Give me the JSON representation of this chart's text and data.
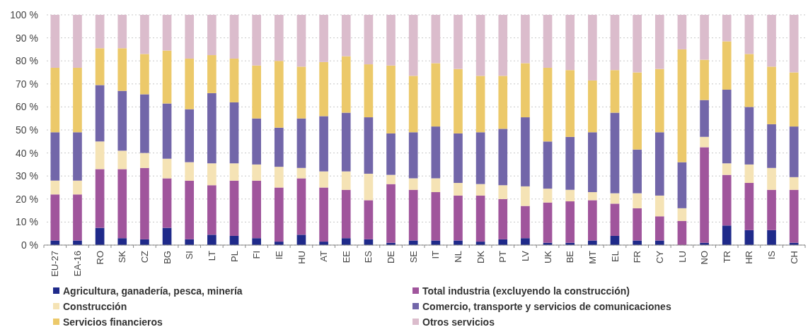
{
  "chart_data": {
    "type": "bar",
    "stacked": true,
    "categories": [
      "EU-27",
      "EA-16",
      "RO",
      "SK",
      "CZ",
      "BG",
      "SI",
      "LT",
      "PL",
      "FI",
      "IE",
      "HU",
      "AT",
      "EE",
      "ES",
      "DE",
      "SE",
      "IT",
      "NL",
      "DK",
      "PT",
      "LV",
      "UK",
      "BE",
      "MT",
      "EL",
      "FR",
      "CY",
      "LU",
      "NO",
      "TR",
      "HR",
      "IS",
      "CH"
    ],
    "series": [
      {
        "name": "Agricultura, ganadería, pesca, minería",
        "color": "#1f2a8a",
        "values": [
          2,
          2,
          7.5,
          3,
          2.5,
          7.5,
          2.5,
          4.5,
          4,
          3,
          1.5,
          4.5,
          1.5,
          3,
          2.5,
          1,
          2,
          2,
          2,
          1.5,
          2.5,
          3,
          1,
          1,
          2,
          4,
          2,
          2,
          null,
          1,
          8.5,
          6.5,
          6.5,
          1
        ]
      },
      {
        "name": "Total industria (excluyendo la construcción)",
        "color": "#a0559c",
        "values": [
          20,
          20,
          25.5,
          30,
          31,
          21.5,
          25.5,
          21.5,
          24,
          25,
          23.5,
          24.5,
          23.5,
          21,
          17,
          25.5,
          22,
          21,
          19.5,
          20,
          17.5,
          14,
          17.5,
          18,
          17.5,
          14,
          14,
          10.5,
          10.5,
          41.5,
          22,
          20.5,
          17.5,
          23
        ]
      },
      {
        "name": "Construcción",
        "color": "#f5e3b5",
        "values": [
          6,
          6,
          12,
          8,
          6.5,
          8.5,
          8,
          9.5,
          7.5,
          7,
          9,
          4.5,
          7,
          8,
          11.5,
          4,
          5,
          6,
          5.5,
          5,
          6,
          8.5,
          6,
          5,
          3.5,
          4.5,
          6.5,
          9,
          5.5,
          4.5,
          5,
          8,
          9.5,
          5.5
        ]
      },
      {
        "name": "Comercio, transporte y servicios de comunicaciones",
        "color": "#7266a9",
        "values": [
          21,
          21,
          24.5,
          26,
          25.5,
          24,
          23,
          30.5,
          26.5,
          20,
          17,
          21.5,
          24,
          25.5,
          24.5,
          18,
          20,
          22.5,
          21.5,
          22.5,
          24.5,
          30,
          20.5,
          23,
          26,
          35,
          19,
          27.5,
          20,
          16,
          32,
          25,
          19,
          22
        ]
      },
      {
        "name": "Servicios financieros",
        "color": "#ecc96a",
        "values": [
          28,
          28,
          16,
          18.5,
          17.5,
          23,
          22,
          16.5,
          19,
          23,
          29,
          22.5,
          23.5,
          24.5,
          23,
          29.5,
          24.5,
          27.5,
          28,
          24.5,
          23,
          23.5,
          32,
          29,
          22.5,
          18.5,
          33.5,
          27.5,
          49,
          17.5,
          21,
          23,
          25,
          23.5
        ]
      },
      {
        "name": "Otros servicios",
        "color": "#dbbccc",
        "values": [
          23,
          23,
          14.5,
          14.5,
          17,
          15.5,
          19,
          17.5,
          19,
          22,
          20,
          22.5,
          20.5,
          18,
          21.5,
          22,
          26.5,
          21,
          23.5,
          26.5,
          26.5,
          21,
          23,
          24,
          28.5,
          24,
          25,
          23.5,
          15,
          19.5,
          11.5,
          17,
          22.5,
          25
        ]
      }
    ],
    "ylim": [
      0,
      100
    ],
    "yticks": [
      {
        "value": 0,
        "label": "0 %"
      },
      {
        "value": 10,
        "label": "10 %"
      },
      {
        "value": 20,
        "label": "20 %"
      },
      {
        "value": 30,
        "label": "30 %"
      },
      {
        "value": 40,
        "label": "40 %"
      },
      {
        "value": 50,
        "label": "50 %"
      },
      {
        "value": 60,
        "label": "60 %"
      },
      {
        "value": 70,
        "label": "70 %"
      },
      {
        "value": 80,
        "label": "80 %"
      },
      {
        "value": 90,
        "label": "90 %"
      },
      {
        "value": 100,
        "label": "100 %"
      }
    ],
    "grid": "y",
    "legend": "bottom",
    "marker": "square"
  }
}
